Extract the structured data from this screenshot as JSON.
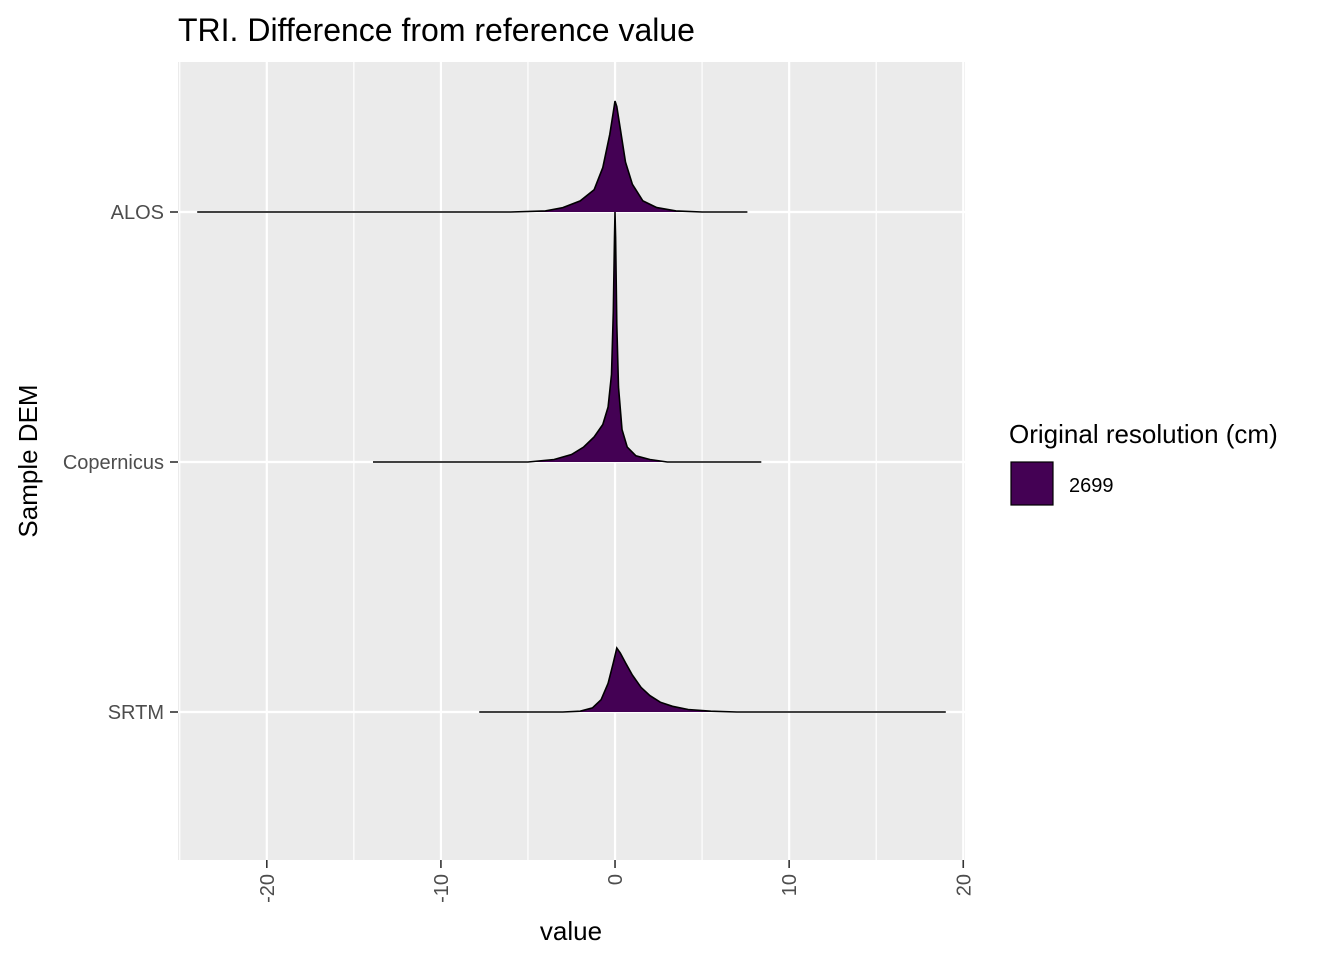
{
  "chart_data": {
    "type": "ridgeline",
    "title": "TRI. Difference from reference value",
    "xlabel": "value",
    "ylabel": "Sample DEM",
    "xlim": [
      -25.1,
      20.1
    ],
    "x_ticks": [
      -20,
      -10,
      0,
      10,
      20
    ],
    "x_tick_labels": [
      "-20",
      "-10",
      "0",
      "10",
      "20"
    ],
    "x_minor_ticks": [
      -25,
      -15,
      -5,
      5,
      15
    ],
    "categories": [
      "ALOS",
      "Copernicus",
      "SRTM"
    ],
    "grid": true,
    "legend": {
      "position": "right",
      "title": "Original resolution (cm)",
      "entries": [
        {
          "label": "2699",
          "color": "#440154"
        }
      ]
    },
    "series": [
      {
        "category": "ALOS",
        "fill": "#440154",
        "x_range": [
          -24,
          7.6
        ],
        "curve": [
          [
            -24,
            0
          ],
          [
            -6,
            0.0
          ],
          [
            -4,
            0.01
          ],
          [
            -3,
            0.04
          ],
          [
            -2,
            0.1
          ],
          [
            -1.2,
            0.2
          ],
          [
            -0.7,
            0.4
          ],
          [
            -0.3,
            0.7
          ],
          [
            -0.1,
            0.9
          ],
          [
            0.0,
            1.0
          ],
          [
            0.1,
            0.95
          ],
          [
            0.3,
            0.75
          ],
          [
            0.6,
            0.45
          ],
          [
            1.0,
            0.25
          ],
          [
            1.6,
            0.1
          ],
          [
            2.4,
            0.04
          ],
          [
            3.5,
            0.01
          ],
          [
            5,
            0.0
          ],
          [
            7.6,
            0
          ]
        ]
      },
      {
        "category": "Copernicus",
        "fill": "#440154",
        "x_range": [
          -13.9,
          8.4
        ],
        "curve": [
          [
            -13.9,
            0
          ],
          [
            -5,
            0.0
          ],
          [
            -3.5,
            0.01
          ],
          [
            -2.5,
            0.03
          ],
          [
            -1.8,
            0.06
          ],
          [
            -1.2,
            0.1
          ],
          [
            -0.7,
            0.15
          ],
          [
            -0.4,
            0.22
          ],
          [
            -0.2,
            0.35
          ],
          [
            -0.1,
            0.6
          ],
          [
            -0.03,
            0.9
          ],
          [
            0.0,
            1.0
          ],
          [
            0.03,
            0.9
          ],
          [
            0.1,
            0.55
          ],
          [
            0.2,
            0.3
          ],
          [
            0.4,
            0.13
          ],
          [
            0.7,
            0.06
          ],
          [
            1.2,
            0.025
          ],
          [
            2,
            0.01
          ],
          [
            3,
            0.0
          ],
          [
            8.4,
            0
          ]
        ]
      },
      {
        "category": "SRTM",
        "fill": "#440154",
        "x_range": [
          -7.8,
          19.0
        ],
        "curve": [
          [
            -7.8,
            0
          ],
          [
            -3,
            0.0
          ],
          [
            -2,
            0.01
          ],
          [
            -1.3,
            0.05
          ],
          [
            -0.8,
            0.15
          ],
          [
            -0.4,
            0.35
          ],
          [
            -0.1,
            0.6
          ],
          [
            0.1,
            0.78
          ],
          [
            0.3,
            0.72
          ],
          [
            0.6,
            0.6
          ],
          [
            1.0,
            0.45
          ],
          [
            1.5,
            0.3
          ],
          [
            2,
            0.2
          ],
          [
            2.6,
            0.12
          ],
          [
            3.3,
            0.07
          ],
          [
            4.2,
            0.03
          ],
          [
            5.5,
            0.01
          ],
          [
            7,
            0.0
          ],
          [
            19,
            0
          ]
        ]
      }
    ]
  }
}
